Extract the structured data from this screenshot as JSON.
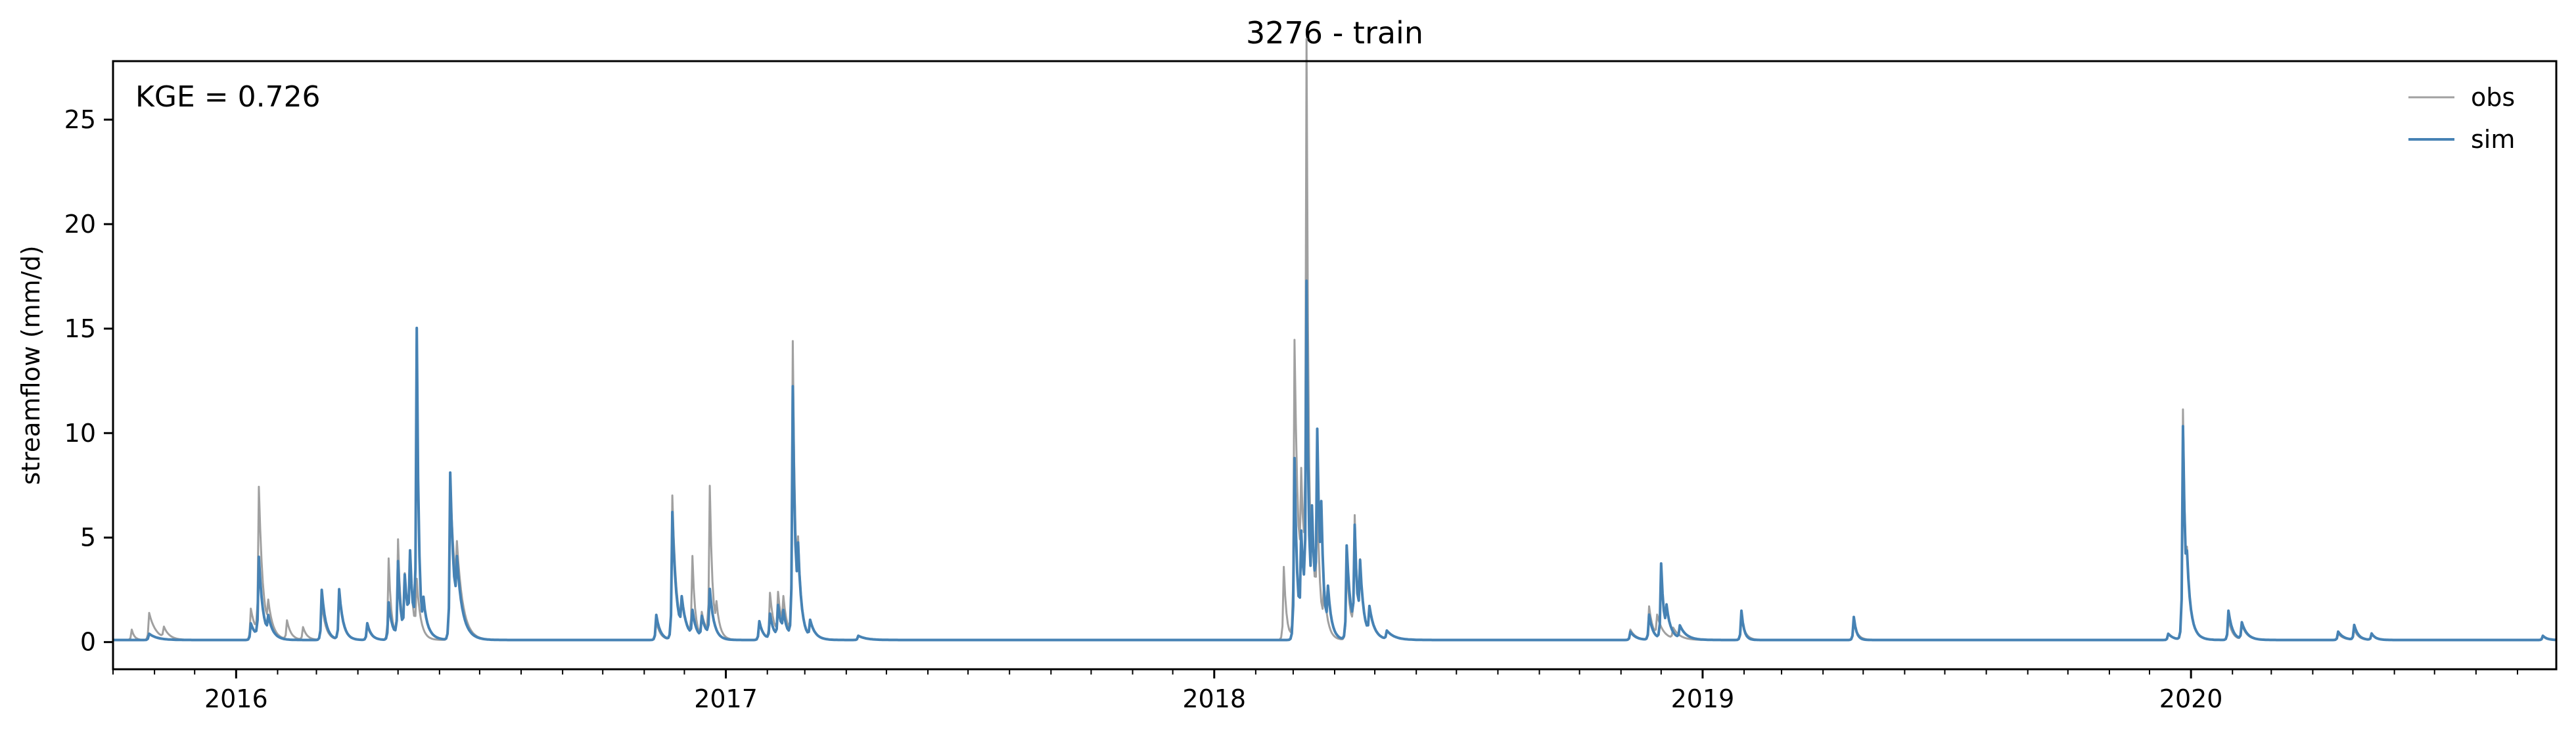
{
  "chart_data": {
    "type": "line",
    "title": "3276 - train",
    "xlabel": "",
    "ylabel": "streamflow (mm/d)",
    "annotation": "KGE = 0.726",
    "xlim": [
      "2015-10-01",
      "2020-09-30"
    ],
    "ylim": [
      -1.3,
      27.8
    ],
    "xticks": [
      "2016",
      "2017",
      "2018",
      "2019",
      "2020"
    ],
    "yticks": [
      0,
      5,
      10,
      15,
      20,
      25
    ],
    "legend_placement": "top-right",
    "grid": false,
    "baseline": 0.1,
    "series": [
      {
        "name": "obs",
        "color": "#a0a0a0",
        "peaks": [
          [
            "2015-10-15",
            0.5,
            2
          ],
          [
            "2015-10-28",
            1.3,
            5
          ],
          [
            "2015-11-08",
            0.5,
            4
          ],
          [
            "2016-01-12",
            1.5,
            4
          ],
          [
            "2016-01-18",
            7.0,
            3
          ],
          [
            "2016-01-25",
            1.2,
            4
          ],
          [
            "2016-02-08",
            0.9,
            3
          ],
          [
            "2016-02-20",
            0.6,
            3
          ],
          [
            "2016-03-05",
            1.8,
            3
          ],
          [
            "2016-03-18",
            2.2,
            3
          ],
          [
            "2016-04-08",
            0.7,
            3
          ],
          [
            "2016-04-24",
            3.9,
            2
          ],
          [
            "2016-05-01",
            4.7,
            2
          ],
          [
            "2016-05-06",
            2.8,
            3
          ],
          [
            "2016-05-10",
            3.5,
            2
          ],
          [
            "2016-05-15",
            2.5,
            3
          ],
          [
            "2016-06-09",
            7.8,
            4
          ],
          [
            "2016-06-14",
            2.5,
            5
          ],
          [
            "2016-11-10",
            0.9,
            3
          ],
          [
            "2016-11-22",
            6.9,
            3
          ],
          [
            "2016-11-29",
            1.3,
            4
          ],
          [
            "2016-12-07",
            3.8,
            2
          ],
          [
            "2016-12-14",
            1.2,
            4
          ],
          [
            "2016-12-20",
            7.1,
            2
          ],
          [
            "2016-12-25",
            1.2,
            3
          ],
          [
            "2017-01-26",
            0.9,
            3
          ],
          [
            "2017-02-03",
            2.2,
            3
          ],
          [
            "2017-02-09",
            2.0,
            3
          ],
          [
            "2017-02-13",
            1.5,
            3
          ],
          [
            "2017-02-20",
            14.1,
            2
          ],
          [
            "2017-02-24",
            3.0,
            3
          ],
          [
            "2017-03-05",
            0.8,
            4
          ],
          [
            "2017-04-10",
            0.2,
            6
          ],
          [
            "2018-02-22",
            3.5,
            2
          ],
          [
            "2018-03-02",
            14.3,
            3
          ],
          [
            "2018-03-07",
            5.5,
            3
          ],
          [
            "2018-03-11",
            26.6,
            1.5
          ],
          [
            "2018-03-15",
            4.0,
            3
          ],
          [
            "2018-03-19",
            5.8,
            2
          ],
          [
            "2018-03-24",
            2.0,
            3
          ],
          [
            "2018-04-10",
            3.5,
            3
          ],
          [
            "2018-04-16",
            5.5,
            2
          ],
          [
            "2018-04-20",
            3.0,
            3
          ],
          [
            "2018-04-27",
            1.2,
            4
          ],
          [
            "2018-05-10",
            0.4,
            6
          ],
          [
            "2018-11-08",
            0.5,
            4
          ],
          [
            "2018-11-22",
            1.6,
            3
          ],
          [
            "2018-11-28",
            1.0,
            5
          ],
          [
            "2018-12-10",
            0.5,
            5
          ],
          [
            "2019-01-30",
            1.0,
            3
          ],
          [
            "2019-04-24",
            0.8,
            3
          ],
          [
            "2019-12-15",
            0.3,
            4
          ],
          [
            "2019-12-26",
            11.0,
            2
          ],
          [
            "2019-12-29",
            2.0,
            4
          ],
          [
            "2020-01-29",
            1.0,
            3
          ],
          [
            "2020-02-08",
            0.7,
            4
          ],
          [
            "2020-04-20",
            0.3,
            4
          ],
          [
            "2020-05-02",
            0.5,
            3
          ],
          [
            "2020-05-15",
            0.3,
            3
          ],
          [
            "2020-09-20",
            0.2,
            3
          ]
        ]
      },
      {
        "name": "sim",
        "color": "#4682b4",
        "peaks": [
          [
            "2015-10-28",
            0.3,
            6
          ],
          [
            "2016-01-12",
            0.8,
            4
          ],
          [
            "2016-01-18",
            3.8,
            3
          ],
          [
            "2016-01-25",
            0.8,
            4
          ],
          [
            "2016-03-05",
            2.4,
            3
          ],
          [
            "2016-03-18",
            2.4,
            3
          ],
          [
            "2016-04-08",
            0.8,
            3
          ],
          [
            "2016-04-24",
            1.8,
            3
          ],
          [
            "2016-05-01",
            3.6,
            2
          ],
          [
            "2016-05-06",
            2.8,
            3
          ],
          [
            "2016-05-10",
            3.5,
            2
          ],
          [
            "2016-05-15",
            14.5,
            1.5
          ],
          [
            "2016-05-20",
            1.5,
            4
          ],
          [
            "2016-06-09",
            8.0,
            3
          ],
          [
            "2016-06-14",
            2.5,
            5
          ],
          [
            "2016-11-10",
            1.2,
            3
          ],
          [
            "2016-11-22",
            6.1,
            3
          ],
          [
            "2016-11-29",
            1.5,
            4
          ],
          [
            "2016-12-07",
            1.2,
            3
          ],
          [
            "2016-12-14",
            1.0,
            4
          ],
          [
            "2016-12-20",
            2.2,
            3
          ],
          [
            "2017-01-26",
            0.9,
            3
          ],
          [
            "2017-02-03",
            1.2,
            3
          ],
          [
            "2017-02-09",
            1.5,
            3
          ],
          [
            "2017-02-13",
            1.0,
            3
          ],
          [
            "2017-02-20",
            12.0,
            2
          ],
          [
            "2017-02-24",
            3.0,
            3
          ],
          [
            "2017-03-05",
            0.8,
            4
          ],
          [
            "2017-04-10",
            0.2,
            6
          ],
          [
            "2018-03-02",
            8.7,
            2
          ],
          [
            "2018-03-07",
            4.5,
            3
          ],
          [
            "2018-03-11",
            15.9,
            1.5
          ],
          [
            "2018-03-15",
            5.0,
            3
          ],
          [
            "2018-03-19",
            8.6,
            2
          ],
          [
            "2018-03-22",
            4.2,
            2
          ],
          [
            "2018-03-27",
            2.0,
            3
          ],
          [
            "2018-04-10",
            4.5,
            3
          ],
          [
            "2018-04-16",
            4.9,
            2
          ],
          [
            "2018-04-20",
            3.0,
            3
          ],
          [
            "2018-04-27",
            1.3,
            4
          ],
          [
            "2018-05-10",
            0.4,
            6
          ],
          [
            "2018-11-08",
            0.4,
            4
          ],
          [
            "2018-11-22",
            1.2,
            3
          ],
          [
            "2018-12-01",
            3.6,
            2
          ],
          [
            "2018-12-05",
            1.2,
            4
          ],
          [
            "2018-12-15",
            0.6,
            5
          ],
          [
            "2019-01-30",
            1.4,
            2
          ],
          [
            "2019-04-24",
            1.1,
            2
          ],
          [
            "2019-12-15",
            0.3,
            4
          ],
          [
            "2019-12-26",
            10.2,
            2
          ],
          [
            "2019-12-29",
            2.0,
            4
          ],
          [
            "2020-01-29",
            1.4,
            3
          ],
          [
            "2020-02-08",
            0.8,
            4
          ],
          [
            "2020-04-20",
            0.4,
            4
          ],
          [
            "2020-05-02",
            0.7,
            3
          ],
          [
            "2020-05-15",
            0.3,
            3
          ],
          [
            "2020-09-20",
            0.2,
            3
          ]
        ]
      }
    ]
  }
}
